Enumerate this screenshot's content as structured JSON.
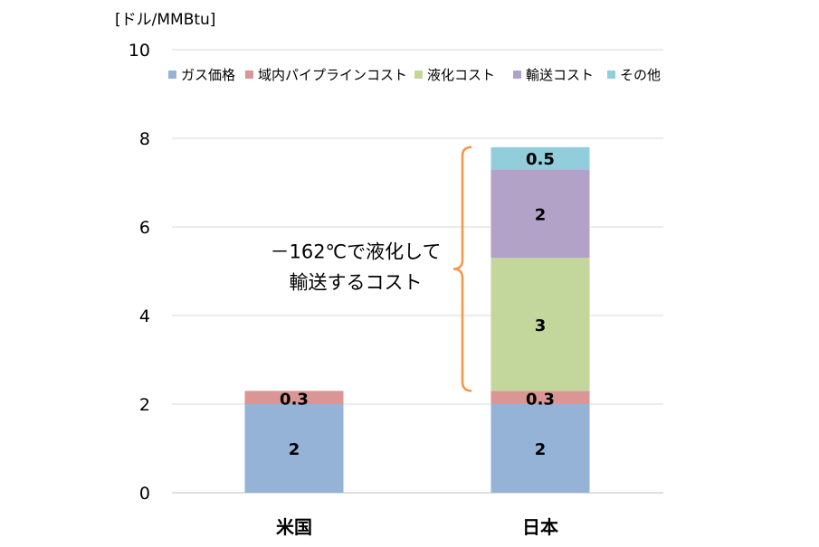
{
  "chart_data": {
    "type": "bar",
    "stacked": true,
    "unit_label": "[ドル/MMBtu]",
    "categories": [
      "米国",
      "日本"
    ],
    "ylim": [
      0,
      10
    ],
    "yticks": [
      "0",
      "2",
      "4",
      "6",
      "8",
      "10"
    ],
    "grid": true,
    "legend_position": "top",
    "series": [
      {
        "name": "ガス価格",
        "color": "#95b3d7",
        "values": [
          2,
          2
        ],
        "labels": [
          "2",
          "2"
        ]
      },
      {
        "name": "域内パイプラインコスト",
        "color": "#d99694",
        "values": [
          0.3,
          0.3
        ],
        "labels": [
          "0.3",
          "0.3"
        ]
      },
      {
        "name": "液化コスト",
        "color": "#c3d69b",
        "values": [
          0,
          3
        ],
        "labels": [
          "",
          "3"
        ]
      },
      {
        "name": "輸送コスト",
        "color": "#b2a2c7",
        "values": [
          0,
          2
        ],
        "labels": [
          "",
          "2"
        ]
      },
      {
        "name": "その他",
        "color": "#92cddc",
        "values": [
          0,
          0.5
        ],
        "labels": [
          "",
          "0.5"
        ]
      }
    ],
    "annotation": {
      "lines": [
        "－162℃で液化して",
        "輸送するコスト"
      ],
      "bracket_color": "#f79646"
    }
  }
}
